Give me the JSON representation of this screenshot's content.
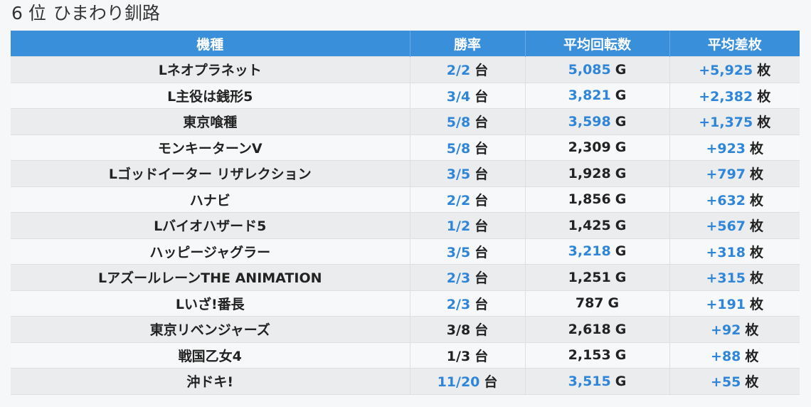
{
  "title": {
    "rank": "6 位",
    "store": "ひまわり釧路"
  },
  "table": {
    "headers": [
      "機種",
      "勝率",
      "平均回転数",
      "平均差枚"
    ],
    "units": {
      "rate": "台",
      "spins": "G",
      "diff": "枚"
    },
    "colors": {
      "blue": "#2f86d8",
      "black": "#222222",
      "header_bg": "#3a8fdb"
    },
    "rows": [
      {
        "name": "Lネオプラネット",
        "rate": "2/2",
        "rate_hl": true,
        "spins": "5,085",
        "spins_hl": true,
        "diff": "+5,925",
        "diff_hl": true
      },
      {
        "name": "L主役は銭形5",
        "rate": "3/4",
        "rate_hl": true,
        "spins": "3,821",
        "spins_hl": true,
        "diff": "+2,382",
        "diff_hl": true
      },
      {
        "name": "東京喰種",
        "rate": "5/8",
        "rate_hl": true,
        "spins": "3,598",
        "spins_hl": true,
        "diff": "+1,375",
        "diff_hl": true
      },
      {
        "name": "モンキーターンV",
        "rate": "5/8",
        "rate_hl": true,
        "spins": "2,309",
        "spins_hl": false,
        "diff": "+923",
        "diff_hl": true
      },
      {
        "name": "Lゴッドイーター リザレクション",
        "rate": "3/5",
        "rate_hl": true,
        "spins": "1,928",
        "spins_hl": false,
        "diff": "+797",
        "diff_hl": true
      },
      {
        "name": "ハナビ",
        "rate": "2/2",
        "rate_hl": true,
        "spins": "1,856",
        "spins_hl": false,
        "diff": "+632",
        "diff_hl": true
      },
      {
        "name": "Lバイオハザード5",
        "rate": "1/2",
        "rate_hl": true,
        "spins": "1,425",
        "spins_hl": false,
        "diff": "+567",
        "diff_hl": true
      },
      {
        "name": "ハッピージャグラー",
        "rate": "3/5",
        "rate_hl": true,
        "spins": "3,218",
        "spins_hl": true,
        "diff": "+318",
        "diff_hl": true
      },
      {
        "name": "LアズールレーンTHE ANIMATION",
        "rate": "2/3",
        "rate_hl": true,
        "spins": "1,251",
        "spins_hl": false,
        "diff": "+315",
        "diff_hl": true
      },
      {
        "name": "Lいざ!番長",
        "rate": "2/3",
        "rate_hl": true,
        "spins": "787",
        "spins_hl": false,
        "diff": "+191",
        "diff_hl": true
      },
      {
        "name": "東京リベンジャーズ",
        "rate": "3/8",
        "rate_hl": false,
        "spins": "2,618",
        "spins_hl": false,
        "diff": "+92",
        "diff_hl": true
      },
      {
        "name": "戦国乙女4",
        "rate": "1/3",
        "rate_hl": false,
        "spins": "2,153",
        "spins_hl": false,
        "diff": "+88",
        "diff_hl": true
      },
      {
        "name": "沖ドキ!",
        "rate": "11/20",
        "rate_hl": true,
        "spins": "3,515",
        "spins_hl": true,
        "diff": "+55",
        "diff_hl": true
      }
    ]
  }
}
